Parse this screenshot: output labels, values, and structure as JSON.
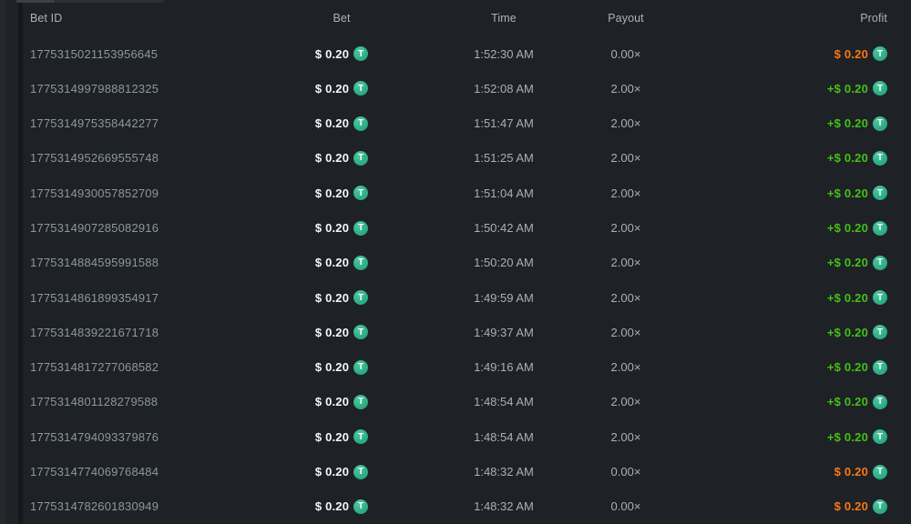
{
  "table": {
    "columns": [
      {
        "key": "bet_id",
        "label": "Bet ID"
      },
      {
        "key": "bet",
        "label": "Bet"
      },
      {
        "key": "time",
        "label": "Time"
      },
      {
        "key": "payout",
        "label": "Payout"
      },
      {
        "key": "profit",
        "label": "Profit"
      }
    ],
    "currency": "tether",
    "currency_symbol": "T",
    "colors": {
      "win": "#43c117",
      "loss": "#f97815",
      "tether": "#2aa982",
      "tether_highlight": "#4cc89d"
    },
    "rows": [
      {
        "bet_id": "1775315021153956645",
        "bet": "$ 0.20",
        "time": "1:52:30 AM",
        "payout": "0.00×",
        "profit": "$ 0.20",
        "profit_state": "loss"
      },
      {
        "bet_id": "1775314997988812325",
        "bet": "$ 0.20",
        "time": "1:52:08 AM",
        "payout": "2.00×",
        "profit": "+$ 0.20",
        "profit_state": "win"
      },
      {
        "bet_id": "1775314975358442277",
        "bet": "$ 0.20",
        "time": "1:51:47 AM",
        "payout": "2.00×",
        "profit": "+$ 0.20",
        "profit_state": "win"
      },
      {
        "bet_id": "1775314952669555748",
        "bet": "$ 0.20",
        "time": "1:51:25 AM",
        "payout": "2.00×",
        "profit": "+$ 0.20",
        "profit_state": "win"
      },
      {
        "bet_id": "1775314930057852709",
        "bet": "$ 0.20",
        "time": "1:51:04 AM",
        "payout": "2.00×",
        "profit": "+$ 0.20",
        "profit_state": "win"
      },
      {
        "bet_id": "1775314907285082916",
        "bet": "$ 0.20",
        "time": "1:50:42 AM",
        "payout": "2.00×",
        "profit": "+$ 0.20",
        "profit_state": "win"
      },
      {
        "bet_id": "1775314884595991588",
        "bet": "$ 0.20",
        "time": "1:50:20 AM",
        "payout": "2.00×",
        "profit": "+$ 0.20",
        "profit_state": "win"
      },
      {
        "bet_id": "1775314861899354917",
        "bet": "$ 0.20",
        "time": "1:49:59 AM",
        "payout": "2.00×",
        "profit": "+$ 0.20",
        "profit_state": "win"
      },
      {
        "bet_id": "1775314839221671718",
        "bet": "$ 0.20",
        "time": "1:49:37 AM",
        "payout": "2.00×",
        "profit": "+$ 0.20",
        "profit_state": "win"
      },
      {
        "bet_id": "1775314817277068582",
        "bet": "$ 0.20",
        "time": "1:49:16 AM",
        "payout": "2.00×",
        "profit": "+$ 0.20",
        "profit_state": "win"
      },
      {
        "bet_id": "1775314801128279588",
        "bet": "$ 0.20",
        "time": "1:48:54 AM",
        "payout": "2.00×",
        "profit": "+$ 0.20",
        "profit_state": "win"
      },
      {
        "bet_id": "1775314794093379876",
        "bet": "$ 0.20",
        "time": "1:48:54 AM",
        "payout": "2.00×",
        "profit": "+$ 0.20",
        "profit_state": "win"
      },
      {
        "bet_id": "1775314774069768484",
        "bet": "$ 0.20",
        "time": "1:48:32 AM",
        "payout": "0.00×",
        "profit": "$ 0.20",
        "profit_state": "loss"
      },
      {
        "bet_id": "1775314782601830949",
        "bet": "$ 0.20",
        "time": "1:48:32 AM",
        "payout": "0.00×",
        "profit": "$ 0.20",
        "profit_state": "loss"
      }
    ]
  }
}
